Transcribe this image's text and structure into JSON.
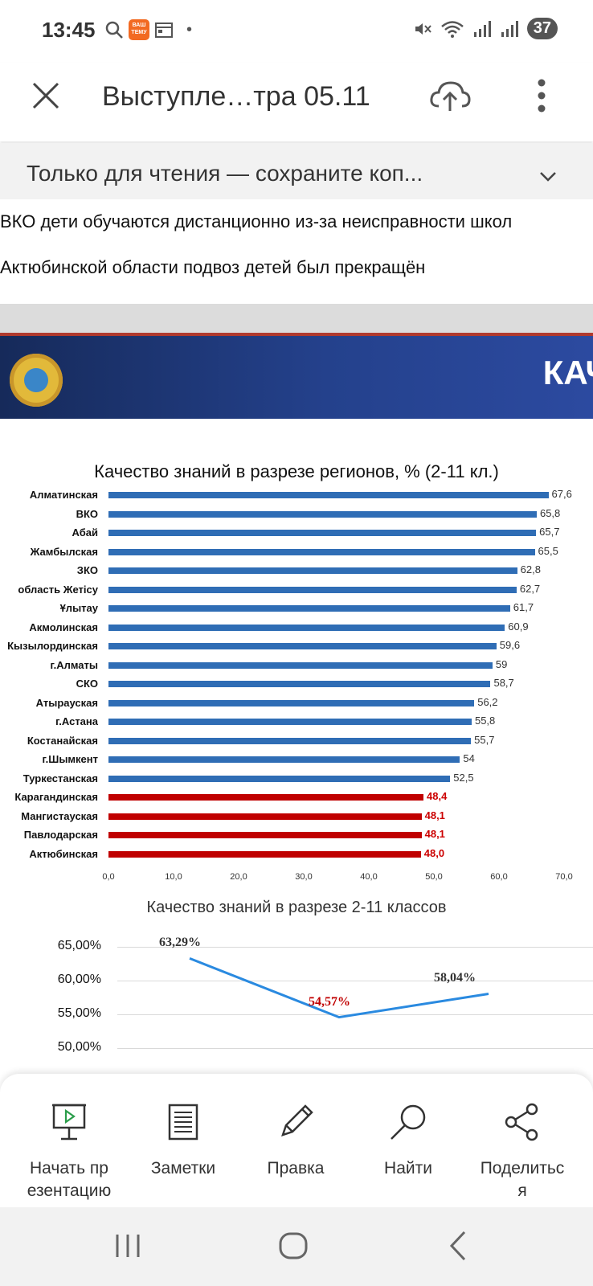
{
  "status_bar": {
    "time": "13:45",
    "app_badge": "ВАШ ТЕМУ",
    "battery": "37"
  },
  "toolbar": {
    "title": "Выступле…тра 05.11"
  },
  "banner": {
    "text": "Только для чтения — сохраните коп..."
  },
  "document": {
    "lines": [
      "ВКО дети обучаются дистанционно из-за неисправности школ",
      "Актюбинской области подвоз детей был прекращён"
    ]
  },
  "slide": {
    "header_title": "КАЧ"
  },
  "colors": {
    "blue_bar": "#2f6db5",
    "red_bar": "#c00000",
    "line": "#2a8ae0",
    "header": "#24418c"
  },
  "chart_data": [
    {
      "type": "bar",
      "orientation": "horizontal",
      "title": "Качество знаний в разрезе регионов, % (2-11 кл.)",
      "categories": [
        "Алматинская",
        "ВКО",
        "Абай",
        "Жамбылская",
        "ЗКО",
        "область Жетісу",
        "Ұлытау",
        "Акмолинская",
        "Кызылординская",
        "г.Алматы",
        "СКО",
        "Атырауская",
        "г.Астана",
        "Костанайская",
        "г.Шымкент",
        "Туркестанская",
        "Карагандинская",
        "Мангистауская",
        "Павлодарская",
        "Актюбинская"
      ],
      "values": [
        67.6,
        65.8,
        65.7,
        65.5,
        62.8,
        62.7,
        61.7,
        60.9,
        59.6,
        59,
        58.7,
        56.2,
        55.8,
        55.7,
        54,
        52.5,
        48.4,
        48.1,
        48.1,
        48.0
      ],
      "value_labels": [
        "67,6",
        "65,8",
        "65,7",
        "65,5",
        "62,8",
        "62,7",
        "61,7",
        "60,9",
        "59,6",
        "59",
        "58,7",
        "56,2",
        "55,8",
        "55,7",
        "54",
        "52,5",
        "48,4",
        "48,1",
        "48,1",
        "48,0"
      ],
      "highlight": [
        false,
        false,
        false,
        false,
        false,
        false,
        false,
        false,
        false,
        false,
        false,
        false,
        false,
        false,
        false,
        false,
        true,
        true,
        true,
        true
      ],
      "xlim": [
        0,
        70
      ],
      "xticks": [
        "0,0",
        "10,0",
        "20,0",
        "30,0",
        "40,0",
        "50,0",
        "60,0",
        "70,0"
      ]
    },
    {
      "type": "line",
      "title": "Качество знаний в разрезе 2-11 классов",
      "values": [
        63.29,
        54.57,
        58.04
      ],
      "value_labels": [
        "63,29%",
        "54,57%",
        "58,04%"
      ],
      "label_colors": [
        "#333333",
        "#c00000",
        "#333333"
      ],
      "ylim": [
        50,
        65
      ],
      "yticks": [
        "65,00%",
        "60,00%",
        "55,00%",
        "50,00%"
      ]
    }
  ],
  "actions": [
    {
      "label": "Начать пр\nезентацию",
      "icon": "presentation-icon"
    },
    {
      "label": "Заметки",
      "icon": "notes-icon"
    },
    {
      "label": "Правка",
      "icon": "pencil-icon"
    },
    {
      "label": "Найти",
      "icon": "search-icon"
    },
    {
      "label": "Поделитьс\nя",
      "icon": "share-icon"
    }
  ]
}
